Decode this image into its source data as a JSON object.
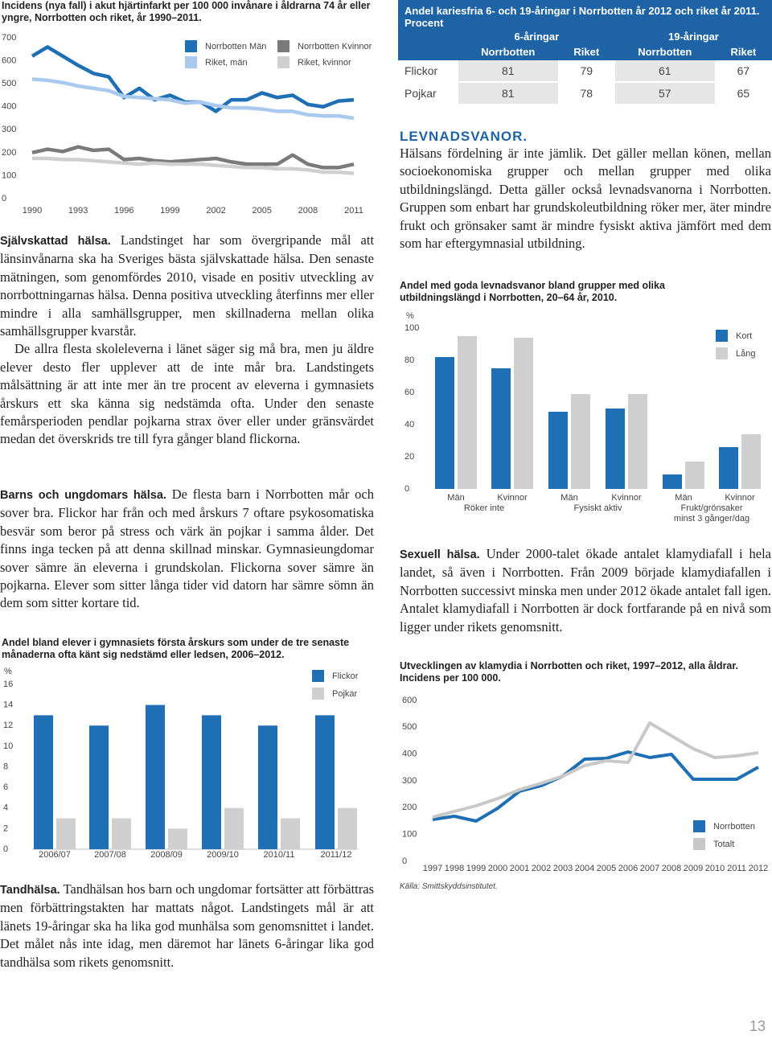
{
  "table": {
    "title": "Andel kariesfria 6- och 19-åringar i Norrbotten år 2012 och riket år 2011. Procent",
    "groups": [
      "6-åringar",
      "19-åringar"
    ],
    "columns": [
      "Norrbotten",
      "Riket",
      "Norrbotten",
      "Riket"
    ],
    "rows": [
      [
        "Flickor",
        "81",
        "79",
        "61",
        "67"
      ],
      [
        "Pojkar",
        "81",
        "78",
        "57",
        "65"
      ]
    ]
  },
  "left": {
    "p1": {
      "lead": "Självskattad hälsa.",
      "text": "Landstinget har som övergripande mål att länsinvånarna ska ha Sveriges bästa självskattade hälsa. Den senaste mätningen, som genomfördes 2010, visade en positiv utveckling av norrbottningarnas hälsa. Denna positiva utveckling återfinns mer eller mindre i alla samhällsgrupper, men skillnaderna mellan olika samhällsgrupper kvarstår."
    },
    "p2": "De allra flesta skoleleverna i länet säger sig må bra, men ju äldre elever desto fler upplever att de inte mår bra. Landstingets målsättning är att inte mer än tre procent av eleverna i gymnasiets årskurs ett ska känna sig nedstämda ofta. Under den senaste femårsperioden pendlar pojkarna strax över eller under gränsvärdet medan det överskrids tre till fyra gånger bland flickorna.",
    "p3": {
      "lead": "Barns och ungdomars hälsa.",
      "text": "De flesta barn i Norrbotten mår och sover bra. Flickor har från och med årskurs 7 oftare psykosomatiska besvär som beror på stress och värk än pojkar i samma ålder. Det finns inga tecken på att denna skillnad minskar. Gymnasieungdomar sover sämre än eleverna i grundskolan. Flickorna sover sämre än pojkarna. Elever som sitter långa tider vid datorn har sämre sömn än dem som sitter kortare tid."
    },
    "p4": {
      "lead": "Tandhälsa.",
      "text": "Tandhälsan hos barn och ungdomar fortsätter att förbättras men förbättringstakten har mattats något. Landstingets mål är att länets 19-åringar ska ha lika god munhälsa som genomsnittet i landet. Det målet nås inte idag, men däremot har länets 6-åringar lika god tandhälsa som rikets genomsnitt."
    }
  },
  "right": {
    "heading": "LEVNADSVANOR.",
    "p1": "Hälsans fördelning är inte jämlik. Det gäller mellan könen, mellan socioekonomiska grupper och mellan grupper med olika utbildningslängd. Detta gäller också levnadsvanorna i Norrbotten. Gruppen som enbart har grundskoleutbildning röker mer, äter mindre frukt och grönsaker samt är mindre fysiskt aktiva jämfört med dem som har eftergymnasial utbildning.",
    "p2": {
      "lead": "Sexuell hälsa.",
      "text": "Under 2000-talet ökade antalet klamydiafall i hela landet, så även i Norrbotten. Från 2009 började klamydiafallen i Norrbotten successivt minska men under 2012 ökade antalet fall igen. Antalet klamydiafall i Norrbotten är dock fortfarande på en nivå som ligger under rikets genomsnitt."
    },
    "source": "Källa: Smittskyddsinstitutet."
  },
  "page_number": "13",
  "chart_data": [
    {
      "type": "line",
      "title": "Incidens (nya fall) i akut hjärtinfarkt per 100 000 invånare i åldrarna 74 år eller yngre, Norrbotten och riket, år 1990–2011.",
      "x": [
        1990,
        1991,
        1992,
        1993,
        1994,
        1995,
        1996,
        1997,
        1998,
        1999,
        2000,
        2001,
        2002,
        2003,
        2004,
        2005,
        2006,
        2007,
        2008,
        2009,
        2010,
        2011
      ],
      "xlim": [
        1990,
        2011
      ],
      "xticks": [
        1990,
        1993,
        1996,
        1999,
        2002,
        2005,
        2008,
        2011
      ],
      "ylim": [
        0,
        700
      ],
      "yticks": [
        0,
        100,
        200,
        300,
        400,
        500,
        600,
        700
      ],
      "series": [
        {
          "name": "Norrbotten Män",
          "color": "#1f6fb5",
          "values": [
            620,
            660,
            620,
            580,
            545,
            530,
            440,
            480,
            430,
            450,
            420,
            420,
            380,
            430,
            430,
            460,
            440,
            450,
            410,
            400,
            425,
            430
          ]
        },
        {
          "name": "Riket, män",
          "color": "#a9c9ee",
          "values": [
            520,
            515,
            505,
            490,
            480,
            470,
            445,
            440,
            435,
            430,
            415,
            420,
            405,
            395,
            395,
            390,
            380,
            380,
            365,
            360,
            360,
            350
          ]
        },
        {
          "name": "Norrbotten Kvinnor",
          "color": "#7a7a7a",
          "values": [
            200,
            215,
            205,
            225,
            210,
            215,
            170,
            175,
            165,
            160,
            165,
            170,
            175,
            160,
            150,
            150,
            150,
            190,
            150,
            135,
            135,
            150
          ]
        },
        {
          "name": "Riket, kvinnor",
          "color": "#cfcfcf",
          "values": [
            175,
            175,
            170,
            170,
            165,
            160,
            155,
            150,
            155,
            150,
            150,
            150,
            145,
            140,
            135,
            135,
            130,
            130,
            125,
            115,
            115,
            110
          ]
        }
      ]
    },
    {
      "type": "bar",
      "title": "Andel med goda levnadsvanor bland grupper med olika utbildningslängd i Norrbotten, 20–64 år, 2010.",
      "unit": "%",
      "categories": [
        "Män",
        "Kvinnor",
        "Män",
        "Kvinnor",
        "Män",
        "Kvinnor"
      ],
      "group_labels": [
        [
          "Röker inte"
        ],
        [
          "Fysiskt aktiv"
        ],
        [
          "Frukt/grönsaker",
          "minst 3 gånger/dag"
        ]
      ],
      "ylim": [
        0,
        100
      ],
      "yticks": [
        0,
        20,
        40,
        60,
        80,
        100
      ],
      "series": [
        {
          "name": "Kort",
          "color": "#1f6fb5",
          "values": [
            82,
            75,
            48,
            50,
            9,
            26
          ]
        },
        {
          "name": "Lång",
          "color": "#cfcfcf",
          "values": [
            95,
            94,
            59,
            59,
            17,
            34
          ]
        }
      ]
    },
    {
      "type": "bar",
      "title": "Andel bland elever i gymnasiets första årskurs som under de tre senaste månaderna ofta känt sig nedstämd eller ledsen, 2006–2012.",
      "unit": "%",
      "categories": [
        "2006/07",
        "2007/08",
        "2008/09",
        "2009/10",
        "2010/11",
        "2011/12"
      ],
      "ylim": [
        0,
        16
      ],
      "yticks": [
        0,
        2,
        4,
        6,
        8,
        10,
        12,
        14,
        16
      ],
      "series": [
        {
          "name": "Flickor",
          "color": "#1f6fb5",
          "values": [
            13,
            12,
            14,
            13,
            12,
            13
          ]
        },
        {
          "name": "Pojkar",
          "color": "#cfcfcf",
          "values": [
            3,
            3,
            2,
            4,
            3,
            4
          ]
        }
      ]
    },
    {
      "type": "line",
      "title": "Utvecklingen av klamydia i Norrbotten och riket, 1997–2012, alla åldrar. Incidens per 100 000.",
      "x": [
        1997,
        1998,
        1999,
        2000,
        2001,
        2002,
        2003,
        2004,
        2005,
        2006,
        2007,
        2008,
        2009,
        2010,
        2011,
        2012
      ],
      "xlim": [
        1997,
        2012
      ],
      "xticks": [
        1997,
        1998,
        1999,
        2000,
        2001,
        2002,
        2003,
        2004,
        2005,
        2006,
        2007,
        2008,
        2009,
        2010,
        2011,
        2012
      ],
      "ylim": [
        0,
        600
      ],
      "yticks": [
        0,
        100,
        200,
        300,
        400,
        500,
        600
      ],
      "series": [
        {
          "name": "Norrbotten",
          "color": "#1f6fb5",
          "values": [
            156,
            168,
            150,
            198,
            261,
            282,
            318,
            381,
            384,
            408,
            387,
            399,
            306,
            306,
            306,
            351
          ]
        },
        {
          "name": "Totalt",
          "color": "#c8c8c8",
          "values": [
            165,
            186,
            207,
            234,
            267,
            291,
            318,
            357,
            375,
            369,
            516,
            468,
            420,
            387,
            393,
            405
          ]
        }
      ]
    }
  ]
}
